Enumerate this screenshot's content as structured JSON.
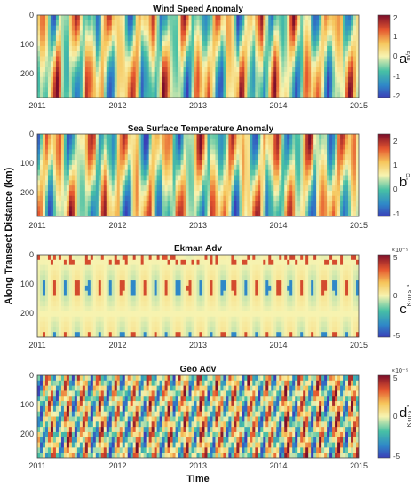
{
  "figure": {
    "ylabel": "Along Transect Distance (km)",
    "xlabel": "Time"
  },
  "chart_data": [
    {
      "type": "heatmap",
      "title": "Wind Speed Anomaly",
      "panel_letter": "a",
      "x_ticks": [
        "2011",
        "2012",
        "2013",
        "2014",
        "2015"
      ],
      "y_ticks": [
        "0",
        "100",
        "200"
      ],
      "ylim": [
        0,
        280
      ],
      "xlim": [
        2011,
        2015
      ],
      "colorbar": {
        "ticks": [
          "2",
          "1",
          "0",
          "-1",
          "-2"
        ],
        "unit": "m/s",
        "exponent": "",
        "range": [
          -2,
          2
        ]
      },
      "style": "smooth"
    },
    {
      "type": "heatmap",
      "title": "Sea Surface Temperature Anomaly",
      "panel_letter": "b",
      "x_ticks": [
        "2011",
        "2012",
        "2013",
        "2014",
        "2015"
      ],
      "y_ticks": [
        "0",
        "100",
        "200"
      ],
      "ylim": [
        0,
        280
      ],
      "xlim": [
        2011,
        2015
      ],
      "colorbar": {
        "ticks": [
          "2",
          "1",
          "0",
          "-1"
        ],
        "unit": "°C",
        "exponent": "",
        "range": [
          -1,
          2.3
        ]
      },
      "style": "smooth"
    },
    {
      "type": "heatmap",
      "title": "Ekman Adv",
      "panel_letter": "c",
      "x_ticks": [
        "2011",
        "2012",
        "2013",
        "2014",
        "2015"
      ],
      "y_ticks": [
        "0",
        "100",
        "200"
      ],
      "ylim": [
        0,
        280
      ],
      "xlim": [
        2011,
        2015
      ],
      "colorbar": {
        "ticks": [
          "5",
          "0",
          "-5"
        ],
        "unit": "K·m·s⁻¹",
        "exponent": "×10⁻⁵",
        "range": [
          -5,
          5
        ]
      },
      "style": "sparse"
    },
    {
      "type": "heatmap",
      "title": "Geo Adv",
      "panel_letter": "d",
      "x_ticks": [
        "2011",
        "2012",
        "2013",
        "2014",
        "2015"
      ],
      "y_ticks": [
        "0",
        "100",
        "200"
      ],
      "ylim": [
        0,
        280
      ],
      "xlim": [
        2011,
        2015
      ],
      "colorbar": {
        "ticks": [
          "5",
          "0",
          "-5"
        ],
        "unit": "K·m·s⁻¹",
        "exponent": "×10⁻⁵",
        "range": [
          -5,
          5
        ]
      },
      "style": "patchy"
    }
  ]
}
